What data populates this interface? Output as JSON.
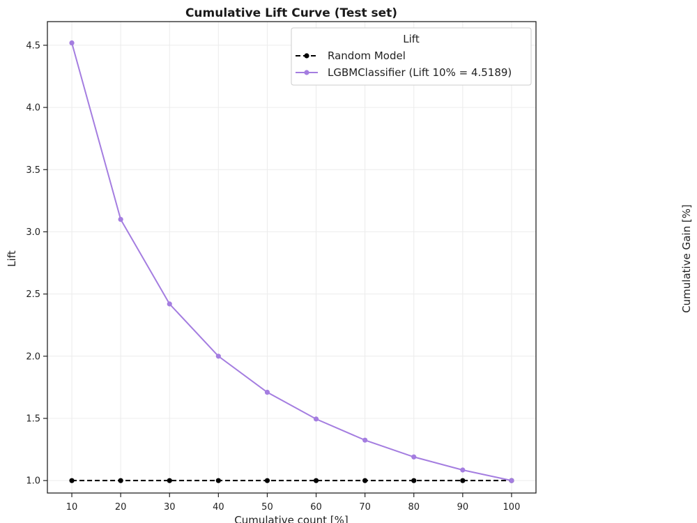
{
  "chart_data": {
    "type": "line",
    "title": "Cumulative Lift Curve (Test set)",
    "xlabel": "Cumulative count [%]",
    "ylabel": "Lift",
    "secondary_ylabel": "Cumulative Gain [%]",
    "x": [
      10,
      20,
      30,
      40,
      50,
      60,
      70,
      80,
      90,
      100
    ],
    "xlim": [
      5,
      105
    ],
    "ylim": [
      0.9,
      4.69
    ],
    "xticks": [
      10,
      20,
      30,
      40,
      50,
      60,
      70,
      80,
      90,
      100
    ],
    "yticks": [
      1.0,
      1.5,
      2.0,
      2.5,
      3.0,
      3.5,
      4.0,
      4.5
    ],
    "grid": true,
    "legend": {
      "title": "Lift",
      "placement": "top-right"
    },
    "series": [
      {
        "name": "Random Model",
        "values": [
          1.0,
          1.0,
          1.0,
          1.0,
          1.0,
          1.0,
          1.0,
          1.0,
          1.0,
          1.0
        ],
        "color": "#000000",
        "style": "dashed"
      },
      {
        "name": "LGBMClassifier (Lift 10% = 4.5189)",
        "values": [
          4.5189,
          3.1,
          2.42,
          2.0,
          1.71,
          1.495,
          1.325,
          1.19,
          1.085,
          1.0
        ],
        "color": "#a47de0",
        "style": "solid"
      }
    ]
  }
}
